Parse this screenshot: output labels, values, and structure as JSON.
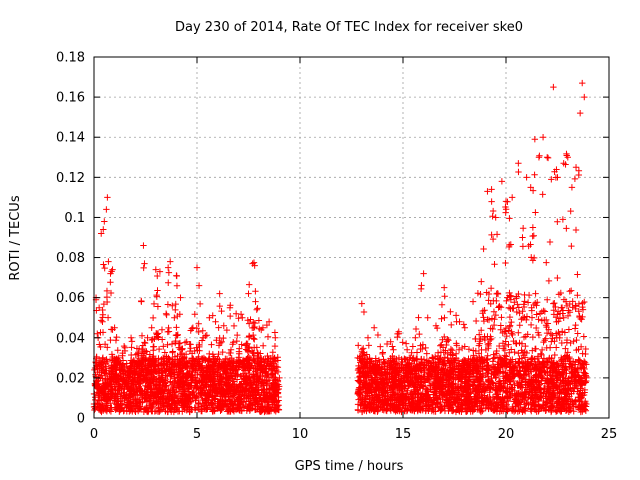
{
  "chart_data": {
    "type": "scatter",
    "title": "Day 230 of 2014, Rate Of TEC Index for receiver ske0",
    "xlabel": "GPS time / hours",
    "ylabel": "ROTI / TECUs",
    "xlim": [
      0,
      25
    ],
    "ylim": [
      0,
      0.18
    ],
    "xticks": [
      0,
      5,
      10,
      15,
      20,
      25
    ],
    "xtick_labels": [
      "0",
      "5",
      "10",
      "15",
      "20",
      "25"
    ],
    "yticks": [
      0,
      0.02,
      0.04,
      0.06,
      0.08,
      0.1,
      0.12,
      0.14,
      0.16,
      0.18
    ],
    "ytick_labels": [
      "0",
      "0.02",
      "0.04",
      "0.06",
      "0.08",
      "0.1",
      "0.12",
      "0.14",
      "0.16",
      "0.18"
    ],
    "grid": true,
    "marker": "+",
    "series": [
      {
        "color": "#ff0000",
        "segments": [
          {
            "range": [
              0.0,
              9.0
            ],
            "points": [
              [
                0.0,
                0.012
              ],
              [
                0.1,
                0.06
              ],
              [
                0.2,
                0.04
              ],
              [
                0.25,
                0.055
              ],
              [
                0.35,
                0.092
              ],
              [
                0.45,
                0.094
              ],
              [
                0.5,
                0.098
              ],
              [
                0.6,
                0.104
              ],
              [
                0.65,
                0.11
              ],
              [
                0.7,
                0.078
              ],
              [
                0.8,
                0.072
              ],
              [
                0.9,
                0.074
              ],
              [
                1.0,
                0.045
              ],
              [
                1.2,
                0.03
              ],
              [
                1.5,
                0.035
              ],
              [
                1.8,
                0.04
              ],
              [
                2.1,
                0.032
              ],
              [
                2.3,
                0.058
              ],
              [
                2.4,
                0.086
              ],
              [
                2.45,
                0.077
              ],
              [
                2.6,
                0.04
              ],
              [
                2.8,
                0.045
              ],
              [
                3.0,
                0.074
              ],
              [
                3.2,
                0.073
              ],
              [
                3.3,
                0.044
              ],
              [
                3.5,
                0.052
              ],
              [
                3.6,
                0.075
              ],
              [
                3.7,
                0.078
              ],
              [
                3.8,
                0.056
              ],
              [
                3.9,
                0.05
              ],
              [
                4.0,
                0.071
              ],
              [
                4.2,
                0.06
              ],
              [
                4.5,
                0.038
              ],
              [
                4.8,
                0.045
              ],
              [
                5.0,
                0.075
              ],
              [
                5.1,
                0.066
              ],
              [
                5.3,
                0.04
              ],
              [
                5.6,
                0.05
              ],
              [
                5.9,
                0.048
              ],
              [
                6.1,
                0.062
              ],
              [
                6.3,
                0.046
              ],
              [
                6.6,
                0.055
              ],
              [
                6.9,
                0.052
              ],
              [
                7.2,
                0.05
              ],
              [
                7.5,
                0.062
              ],
              [
                7.7,
                0.077
              ],
              [
                7.8,
                0.076
              ],
              [
                7.9,
                0.054
              ],
              [
                8.2,
                0.045
              ],
              [
                8.5,
                0.048
              ],
              [
                8.8,
                0.04
              ],
              [
                9.0,
                0.02
              ]
            ]
          },
          {
            "range": [
              12.8,
              23.9
            ],
            "points": [
              [
                12.8,
                0.03
              ],
              [
                13.0,
                0.057
              ],
              [
                13.3,
                0.04
              ],
              [
                13.6,
                0.045
              ],
              [
                14.0,
                0.032
              ],
              [
                14.4,
                0.038
              ],
              [
                14.8,
                0.042
              ],
              [
                15.2,
                0.034
              ],
              [
                15.6,
                0.04
              ],
              [
                16.0,
                0.072
              ],
              [
                16.2,
                0.05
              ],
              [
                16.6,
                0.046
              ],
              [
                17.0,
                0.065
              ],
              [
                17.3,
                0.053
              ],
              [
                17.6,
                0.048
              ],
              [
                18.0,
                0.045
              ],
              [
                18.4,
                0.058
              ],
              [
                18.8,
                0.068
              ],
              [
                19.1,
                0.113
              ],
              [
                19.3,
                0.114
              ],
              [
                19.5,
                0.1
              ],
              [
                19.8,
                0.118
              ],
              [
                20.0,
                0.108
              ],
              [
                20.3,
                0.11
              ],
              [
                20.6,
                0.127
              ],
              [
                20.8,
                0.09
              ],
              [
                21.0,
                0.12
              ],
              [
                21.2,
                0.115
              ],
              [
                21.4,
                0.139
              ],
              [
                21.6,
                0.13
              ],
              [
                21.8,
                0.14
              ],
              [
                22.0,
                0.13
              ],
              [
                22.2,
                0.119
              ],
              [
                22.3,
                0.165
              ],
              [
                22.5,
                0.12
              ],
              [
                22.8,
                0.127
              ],
              [
                23.0,
                0.13
              ],
              [
                23.2,
                0.115
              ],
              [
                23.4,
                0.125
              ],
              [
                23.6,
                0.152
              ],
              [
                23.7,
                0.167
              ],
              [
                23.8,
                0.16
              ],
              [
                23.9,
                0.02
              ]
            ]
          }
        ]
      }
    ]
  }
}
